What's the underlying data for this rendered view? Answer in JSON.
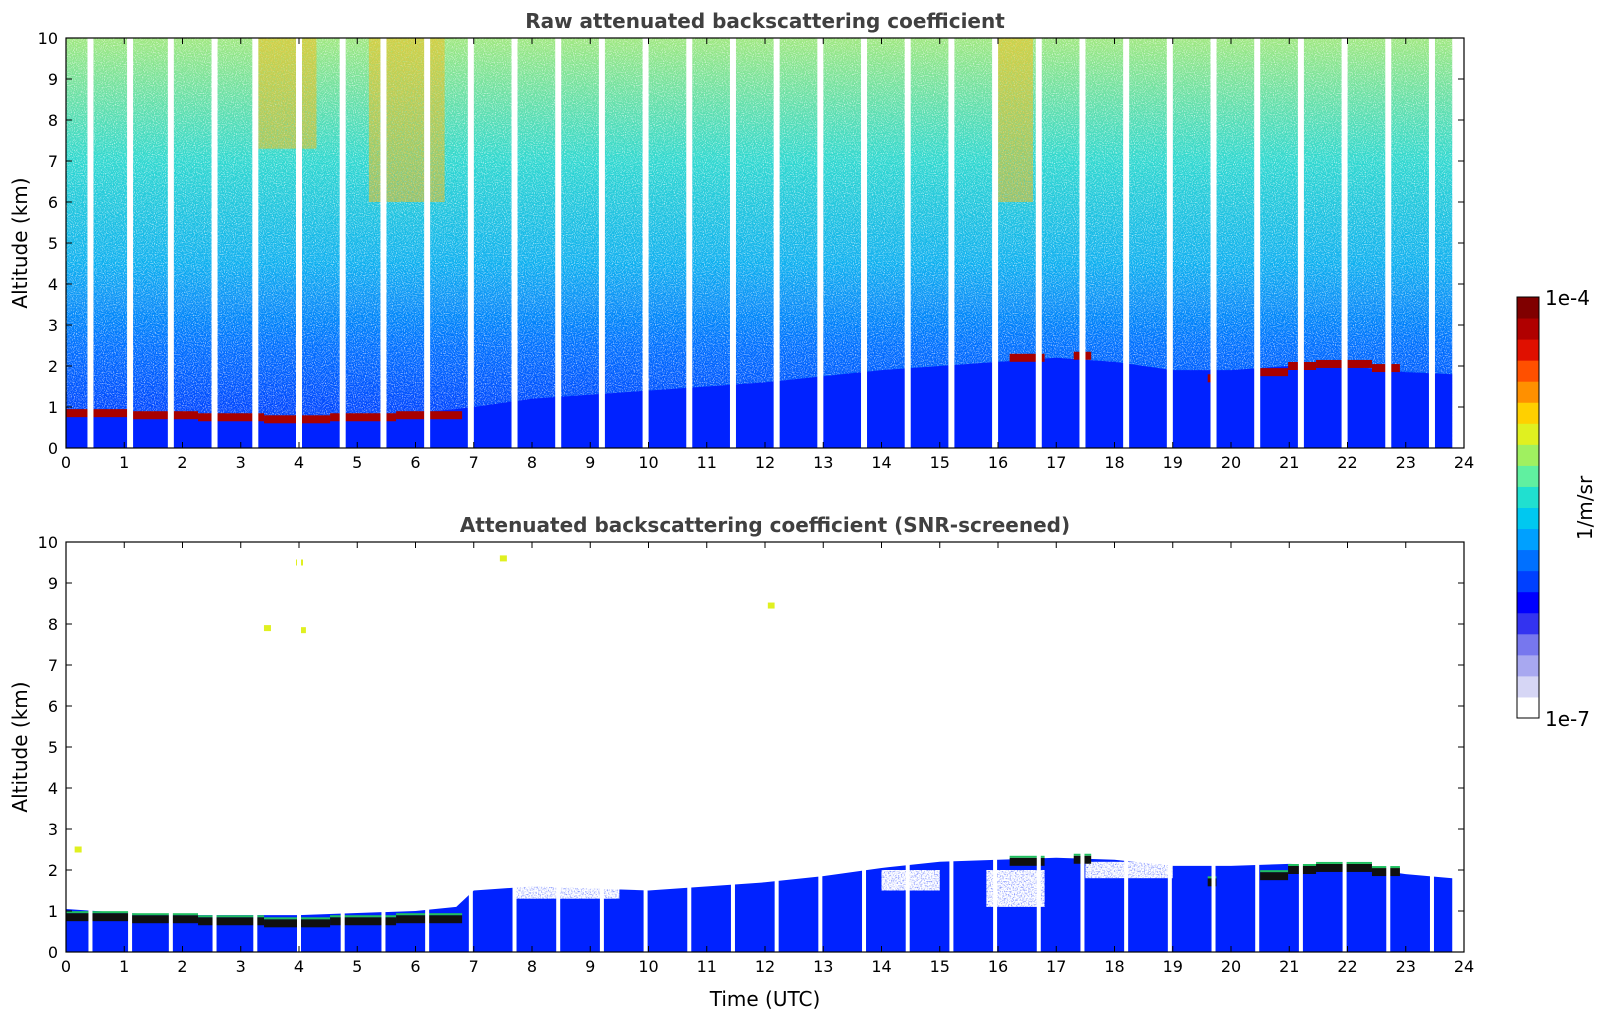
{
  "chart_data": [
    {
      "type": "heatmap",
      "title": "Raw attenuated backscattering coefficient",
      "xlabel": "",
      "ylabel": "Altitude (km)",
      "xlim": [
        0,
        24
      ],
      "ylim": [
        0,
        10
      ],
      "xticks": [
        "0",
        "1",
        "2",
        "3",
        "4",
        "5",
        "6",
        "7",
        "8",
        "9",
        "10",
        "11",
        "12",
        "13",
        "14",
        "15",
        "16",
        "17",
        "18",
        "19",
        "20",
        "21",
        "22",
        "23",
        "24"
      ],
      "yticks": [
        "0",
        "1",
        "2",
        "3",
        "4",
        "5",
        "6",
        "7",
        "8",
        "9",
        "10"
      ],
      "grid": false,
      "color_scale": "log",
      "data_gaps_hours": [
        0.42,
        1.1,
        1.8,
        2.55,
        3.25,
        4.0,
        4.75,
        5.45,
        6.2,
        6.95,
        7.7,
        8.45,
        9.2,
        9.95,
        10.7,
        11.45,
        12.2,
        12.95,
        13.7,
        14.45,
        15.2,
        15.95,
        16.7,
        17.45,
        18.2,
        18.95,
        19.7,
        20.45,
        21.2,
        21.95,
        22.7,
        23.45
      ],
      "features": {
        "boundary_layer_top_km": [
          [
            0,
            0.95
          ],
          [
            1,
            0.85
          ],
          [
            2,
            0.8
          ],
          [
            3,
            0.75
          ],
          [
            4,
            0.7
          ],
          [
            5,
            0.8
          ],
          [
            6,
            0.85
          ],
          [
            6.7,
            0.95
          ],
          [
            7,
            1.0
          ],
          [
            8,
            1.2
          ],
          [
            10,
            1.4
          ],
          [
            12,
            1.6
          ],
          [
            14,
            1.9
          ],
          [
            16,
            2.1
          ],
          [
            17,
            2.2
          ],
          [
            18,
            2.1
          ],
          [
            19,
            1.9
          ],
          [
            20,
            1.9
          ],
          [
            21,
            2.0
          ],
          [
            22,
            2.0
          ],
          [
            23,
            1.85
          ],
          [
            23.8,
            1.8
          ]
        ],
        "cloud_layers": [
          {
            "t_start": 0.0,
            "t_end": 6.8,
            "alt_km": [
              0.85,
              0.8,
              0.75,
              0.7,
              0.75,
              0.8
            ]
          },
          {
            "t_start": 16.2,
            "t_end": 16.8,
            "alt_km": [
              2.2
            ]
          },
          {
            "t_start": 17.3,
            "t_end": 17.6,
            "alt_km": [
              2.25
            ]
          },
          {
            "t_start": 19.6,
            "t_end": 19.75,
            "alt_km": [
              1.7
            ]
          },
          {
            "t_start": 20.5,
            "t_end": 22.9,
            "alt_km": [
              1.85,
              2.0,
              2.05,
              2.05,
              1.95
            ]
          }
        ],
        "noise_max_altitude_km": 10,
        "high_signal_regions": [
          [
            3.3,
            4.3,
            7.3,
            10
          ],
          [
            5.2,
            6.5,
            6.0,
            10
          ],
          [
            16.0,
            16.6,
            6.0,
            10
          ]
        ]
      }
    },
    {
      "type": "heatmap",
      "title": "Attenuated backscattering coefficient (SNR-screened)",
      "xlabel": "Time (UTC)",
      "ylabel": "Altitude (km)",
      "xlim": [
        0,
        24
      ],
      "ylim": [
        0,
        10
      ],
      "xticks": [
        "0",
        "1",
        "2",
        "3",
        "4",
        "5",
        "6",
        "7",
        "8",
        "9",
        "10",
        "11",
        "12",
        "13",
        "14",
        "15",
        "16",
        "17",
        "18",
        "19",
        "20",
        "21",
        "22",
        "23",
        "24"
      ],
      "yticks": [
        "0",
        "1",
        "2",
        "3",
        "4",
        "5",
        "6",
        "7",
        "8",
        "9",
        "10"
      ],
      "grid": false,
      "color_scale": "log",
      "features": {
        "valid_top_km": [
          [
            0,
            1.05
          ],
          [
            1,
            0.95
          ],
          [
            2,
            0.9
          ],
          [
            3,
            0.9
          ],
          [
            4,
            0.9
          ],
          [
            5,
            0.95
          ],
          [
            6,
            1.0
          ],
          [
            6.7,
            1.1
          ],
          [
            7,
            1.5
          ],
          [
            8,
            1.6
          ],
          [
            10,
            1.5
          ],
          [
            12,
            1.7
          ],
          [
            13,
            1.85
          ],
          [
            14,
            2.05
          ],
          [
            15,
            2.2
          ],
          [
            16,
            2.25
          ],
          [
            17,
            2.3
          ],
          [
            18,
            2.25
          ],
          [
            19,
            2.1
          ],
          [
            20,
            2.1
          ],
          [
            21,
            2.15
          ],
          [
            22,
            2.1
          ],
          [
            23,
            1.9
          ],
          [
            23.8,
            1.8
          ]
        ],
        "clear_pockets": [
          [
            7.7,
            9.5,
            1.3,
            1.7
          ],
          [
            14.0,
            15.0,
            1.5,
            2.0
          ],
          [
            15.8,
            16.8,
            1.1,
            2.0
          ],
          [
            17.5,
            19.0,
            1.8,
            2.2
          ]
        ],
        "isolated_echoes": [
          [
            3.45,
            7.9
          ],
          [
            4.05,
            7.85
          ],
          [
            0.2,
            2.5
          ],
          [
            4.0,
            9.5
          ],
          [
            12.1,
            8.45
          ],
          [
            7.5,
            9.6
          ]
        ]
      }
    }
  ],
  "colorbar": {
    "label": "1/m/sr",
    "max_label": "1e-4",
    "min_label": "1e-7",
    "colors": [
      "#ffffff",
      "#d6d6f5",
      "#a8a8f0",
      "#7777ee",
      "#3333f0",
      "#0000ff",
      "#0040ff",
      "#0070ff",
      "#00a0ff",
      "#00c8f0",
      "#20e0d0",
      "#60f0a0",
      "#a0f060",
      "#e0f020",
      "#ffd000",
      "#ff9000",
      "#ff5000",
      "#e01000",
      "#b00000",
      "#800000"
    ]
  }
}
